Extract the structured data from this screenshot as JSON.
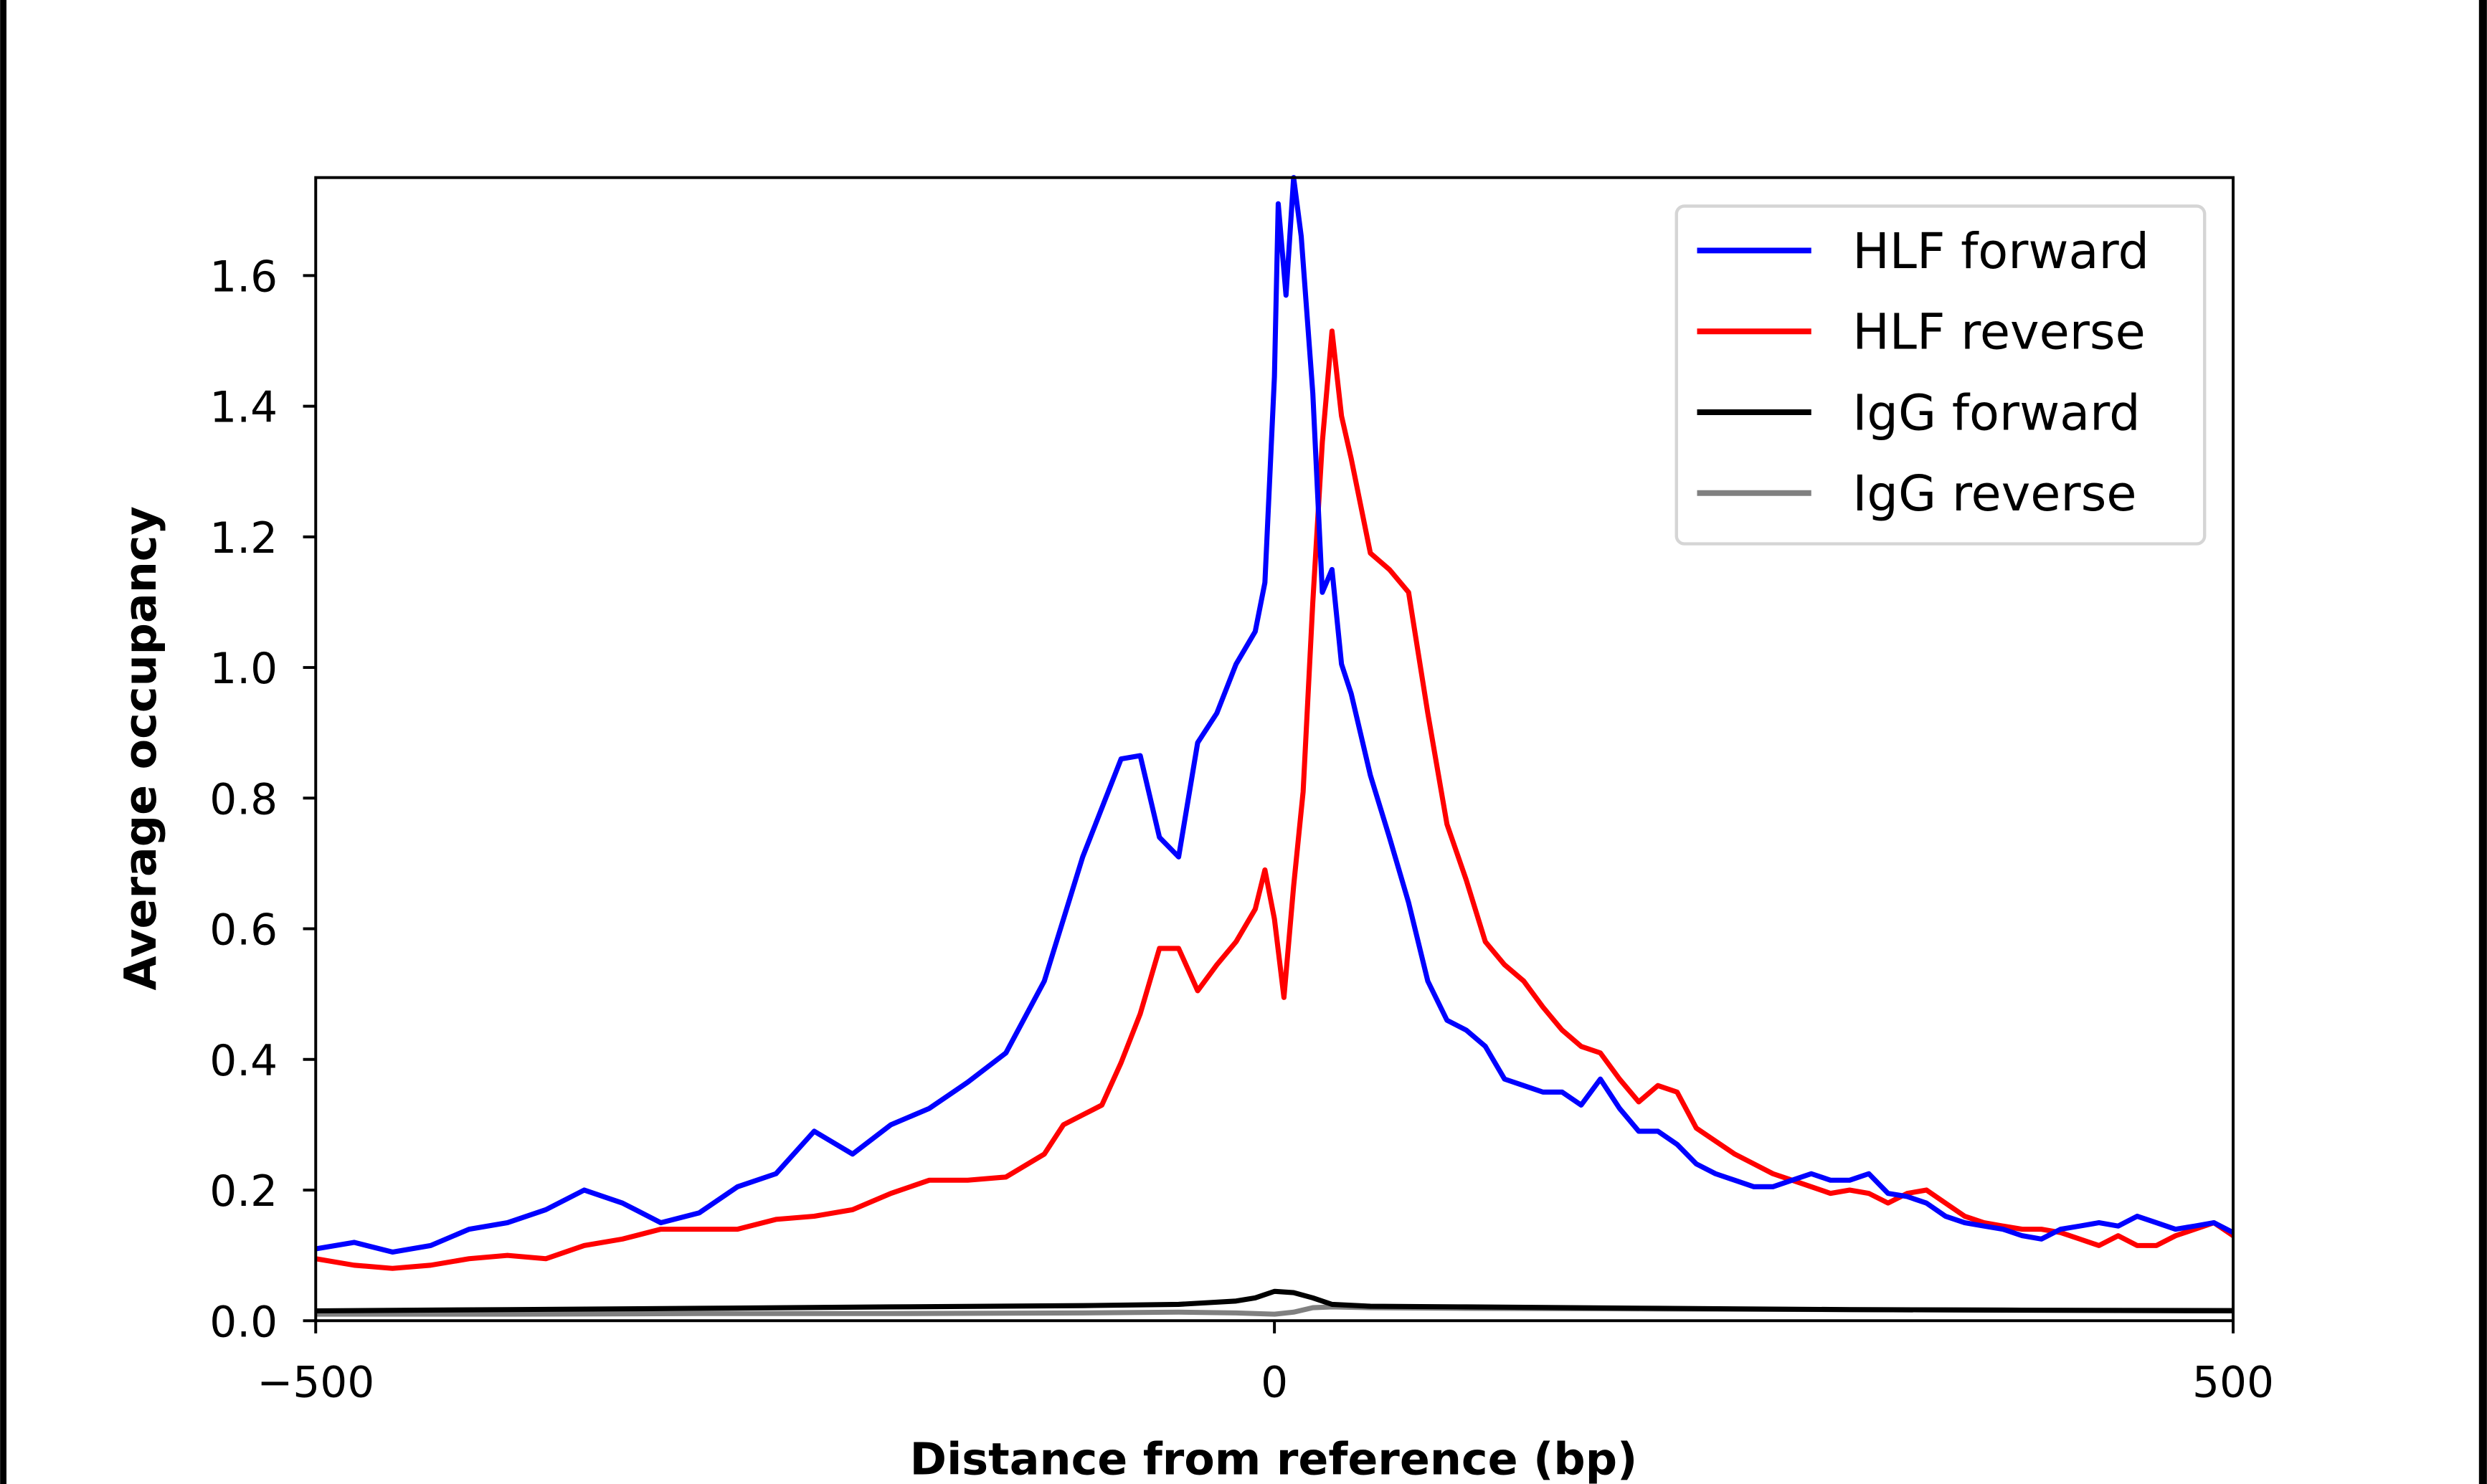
{
  "chart_data": {
    "type": "line",
    "title": "",
    "xlabel": "Distance from reference (bp)",
    "ylabel": "Average occupancy",
    "xlim": [
      -500,
      500
    ],
    "ylim": [
      0,
      1.75
    ],
    "xticks": [
      -500,
      0,
      500
    ],
    "xtick_labels": [
      "−500",
      "0",
      "500"
    ],
    "yticks": [
      0.0,
      0.2,
      0.4,
      0.6,
      0.8,
      1.0,
      1.2,
      1.4,
      1.6
    ],
    "ytick_labels": [
      "0.0",
      "0.2",
      "0.4",
      "0.6",
      "0.8",
      "1.0",
      "1.2",
      "1.4",
      "1.6"
    ],
    "grid": false,
    "legend_position": "top-right",
    "series": [
      {
        "name": "HLF forward",
        "color": "#0000ff",
        "x": [
          -500,
          -480,
          -460,
          -440,
          -420,
          -400,
          -380,
          -360,
          -340,
          -320,
          -300,
          -280,
          -260,
          -240,
          -220,
          -200,
          -180,
          -160,
          -140,
          -120,
          -100,
          -80,
          -70,
          -60,
          -50,
          -40,
          -30,
          -20,
          -10,
          -5,
          0,
          2,
          6,
          10,
          14,
          20,
          25,
          30,
          35,
          40,
          50,
          60,
          70,
          80,
          90,
          100,
          110,
          120,
          130,
          140,
          150,
          160,
          170,
          180,
          190,
          200,
          210,
          220,
          230,
          240,
          250,
          260,
          270,
          280,
          290,
          300,
          310,
          320,
          330,
          340,
          350,
          360,
          370,
          380,
          390,
          400,
          410,
          420,
          430,
          440,
          450,
          460,
          470,
          480,
          490,
          500
        ],
        "y": [
          0.11,
          0.12,
          0.105,
          0.115,
          0.14,
          0.15,
          0.17,
          0.2,
          0.18,
          0.15,
          0.165,
          0.205,
          0.225,
          0.29,
          0.255,
          0.3,
          0.325,
          0.365,
          0.41,
          0.52,
          0.71,
          0.86,
          0.865,
          0.74,
          0.71,
          0.885,
          0.93,
          1.005,
          1.055,
          1.13,
          1.445,
          1.71,
          1.57,
          1.75,
          1.66,
          1.42,
          1.115,
          1.15,
          1.005,
          0.96,
          0.835,
          0.74,
          0.64,
          0.52,
          0.46,
          0.445,
          0.42,
          0.37,
          0.36,
          0.35,
          0.35,
          0.33,
          0.37,
          0.325,
          0.29,
          0.29,
          0.27,
          0.24,
          0.225,
          0.215,
          0.205,
          0.205,
          0.215,
          0.225,
          0.215,
          0.215,
          0.225,
          0.195,
          0.19,
          0.18,
          0.16,
          0.15,
          0.145,
          0.14,
          0.13,
          0.125,
          0.14,
          0.145,
          0.15,
          0.145,
          0.16,
          0.15,
          0.14,
          0.145,
          0.15,
          0.135
        ]
      },
      {
        "name": "HLF reverse",
        "color": "#ff0000",
        "x": [
          -500,
          -480,
          -460,
          -440,
          -420,
          -400,
          -380,
          -360,
          -340,
          -320,
          -300,
          -280,
          -260,
          -240,
          -220,
          -200,
          -180,
          -160,
          -140,
          -120,
          -110,
          -100,
          -90,
          -80,
          -70,
          -60,
          -50,
          -40,
          -30,
          -20,
          -10,
          -5,
          0,
          5,
          10,
          15,
          20,
          25,
          30,
          35,
          40,
          50,
          60,
          70,
          80,
          90,
          100,
          110,
          120,
          130,
          140,
          150,
          160,
          170,
          180,
          190,
          200,
          210,
          220,
          230,
          240,
          250,
          260,
          270,
          280,
          290,
          300,
          310,
          320,
          330,
          340,
          350,
          360,
          370,
          380,
          390,
          400,
          410,
          420,
          430,
          440,
          450,
          460,
          470,
          480,
          490,
          500
        ],
        "y": [
          0.095,
          0.085,
          0.08,
          0.085,
          0.095,
          0.1,
          0.095,
          0.115,
          0.125,
          0.14,
          0.14,
          0.14,
          0.155,
          0.16,
          0.17,
          0.195,
          0.215,
          0.215,
          0.22,
          0.255,
          0.3,
          0.315,
          0.33,
          0.395,
          0.47,
          0.57,
          0.57,
          0.505,
          0.545,
          0.58,
          0.63,
          0.69,
          0.615,
          0.495,
          0.665,
          0.81,
          1.1,
          1.345,
          1.515,
          1.385,
          1.32,
          1.175,
          1.15,
          1.115,
          0.93,
          0.76,
          0.675,
          0.58,
          0.545,
          0.52,
          0.48,
          0.445,
          0.42,
          0.41,
          0.37,
          0.335,
          0.36,
          0.35,
          0.295,
          0.275,
          0.255,
          0.24,
          0.225,
          0.215,
          0.205,
          0.195,
          0.2,
          0.195,
          0.18,
          0.195,
          0.2,
          0.18,
          0.16,
          0.15,
          0.145,
          0.14,
          0.14,
          0.135,
          0.125,
          0.115,
          0.13,
          0.115,
          0.115,
          0.13,
          0.14,
          0.15,
          0.13
        ]
      },
      {
        "name": "IgG forward",
        "color": "#000000",
        "x": [
          -500,
          -400,
          -300,
          -200,
          -100,
          -50,
          -20,
          -10,
          0,
          10,
          20,
          30,
          50,
          100,
          200,
          300,
          400,
          500
        ],
        "y": [
          0.015,
          0.017,
          0.019,
          0.021,
          0.023,
          0.025,
          0.03,
          0.035,
          0.045,
          0.043,
          0.035,
          0.025,
          0.022,
          0.021,
          0.019,
          0.017,
          0.016,
          0.015
        ]
      },
      {
        "name": "IgG reverse",
        "color": "#808080",
        "x": [
          -500,
          -400,
          -300,
          -200,
          -100,
          -50,
          -20,
          0,
          10,
          20,
          30,
          50,
          100,
          200,
          300,
          400,
          500
        ],
        "y": [
          0.01,
          0.01,
          0.011,
          0.011,
          0.012,
          0.013,
          0.012,
          0.01,
          0.013,
          0.02,
          0.021,
          0.02,
          0.019,
          0.018,
          0.017,
          0.016,
          0.016
        ]
      }
    ]
  }
}
